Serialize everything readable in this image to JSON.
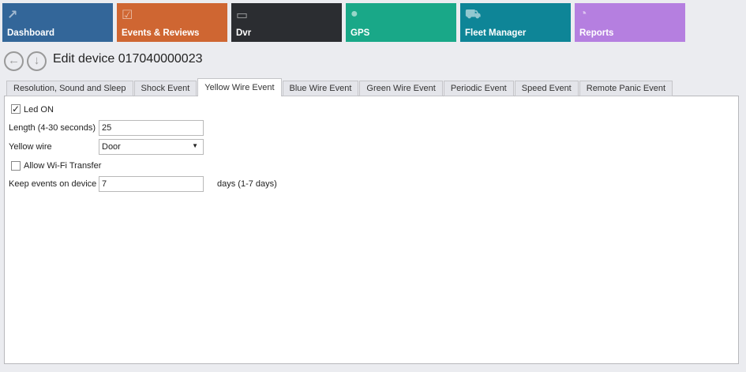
{
  "nav": [
    {
      "label": "Dashboard",
      "icon": "chart-icon",
      "color": "#336699"
    },
    {
      "label": "Events & Reviews",
      "icon": "clipboard-check-icon",
      "color": "#cf6632"
    },
    {
      "label": "Dvr",
      "icon": "dvr-logo-icon",
      "color": "#2b2d31"
    },
    {
      "label": "GPS",
      "icon": "map-pin-icon",
      "color": "#19a888"
    },
    {
      "label": "Fleet Manager",
      "icon": "cars-icon",
      "color": "#0e8597"
    },
    {
      "label": "Reports",
      "icon": "pie-chart-icon",
      "color": "#b57fe0"
    }
  ],
  "page": {
    "title": "Edit device 017040000023"
  },
  "tabs": [
    "Resolution, Sound and Sleep",
    "Shock Event",
    "Yellow Wire Event",
    "Blue Wire Event",
    "Green Wire Event",
    "Periodic Event",
    "Speed Event",
    "Remote Panic Event"
  ],
  "active_tab": "Yellow Wire Event",
  "form": {
    "led_on": {
      "label": "Led ON",
      "checked": true
    },
    "length": {
      "label": "Length (4-30 seconds)",
      "value": "25"
    },
    "yellow_wire": {
      "label": "Yellow wire",
      "value": "Door"
    },
    "wifi": {
      "label": "Allow Wi-Fi Transfer",
      "checked": false
    },
    "keep": {
      "label": "Keep events on device",
      "value": "7",
      "suffix": "days (1-7 days)"
    }
  }
}
